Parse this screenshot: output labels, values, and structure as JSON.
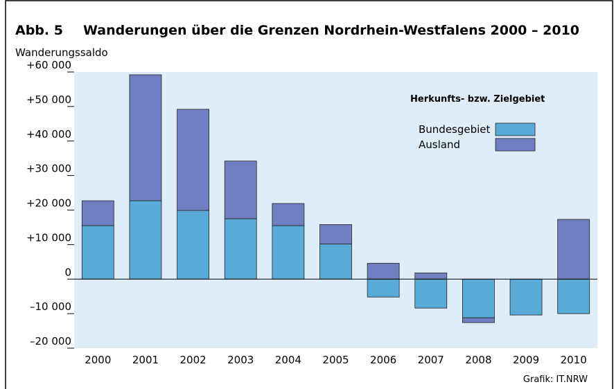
{
  "chart_data": {
    "type": "stacked-bar",
    "figure_label": "Abb. 5",
    "title": "Wanderungen über die Grenzen Nordrhein-Westfalens 2000 – 2010",
    "y_label": "Wanderungssaldo",
    "legend_title": "Herkunfts- bzw. Zielgebiet",
    "source": "Grafik: IT.NRW",
    "categories": [
      "2000",
      "2001",
      "2002",
      "2003",
      "2004",
      "2005",
      "2006",
      "2007",
      "2008",
      "2009",
      "2010"
    ],
    "series": [
      {
        "name": "Bundesgebiet",
        "color": "#5aaad8",
        "values": [
          15500,
          22700,
          19900,
          17500,
          15500,
          10200,
          -5200,
          -8400,
          -11200,
          -10400,
          -10000
        ]
      },
      {
        "name": "Ausland",
        "color": "#6f7fc0",
        "values": [
          7200,
          36500,
          29300,
          16700,
          6400,
          5600,
          4600,
          1800,
          -1400,
          0,
          17300
        ]
      }
    ],
    "ylim": [
      -20000,
      60000
    ],
    "yticks": [
      {
        "value": -20000,
        "label": "–20 000"
      },
      {
        "value": -10000,
        "label": "–10 000"
      },
      0,
      {
        "value": 10000,
        "label": "+10 000"
      },
      {
        "value": 20000,
        "label": "+20 000"
      },
      {
        "value": 30000,
        "label": "+30 000"
      },
      {
        "value": 40000,
        "label": "+40 000"
      },
      {
        "value": 50000,
        "label": "+50 000"
      },
      {
        "value": 60000,
        "label": "+60 000"
      }
    ],
    "plot_background": "#deedf8"
  }
}
